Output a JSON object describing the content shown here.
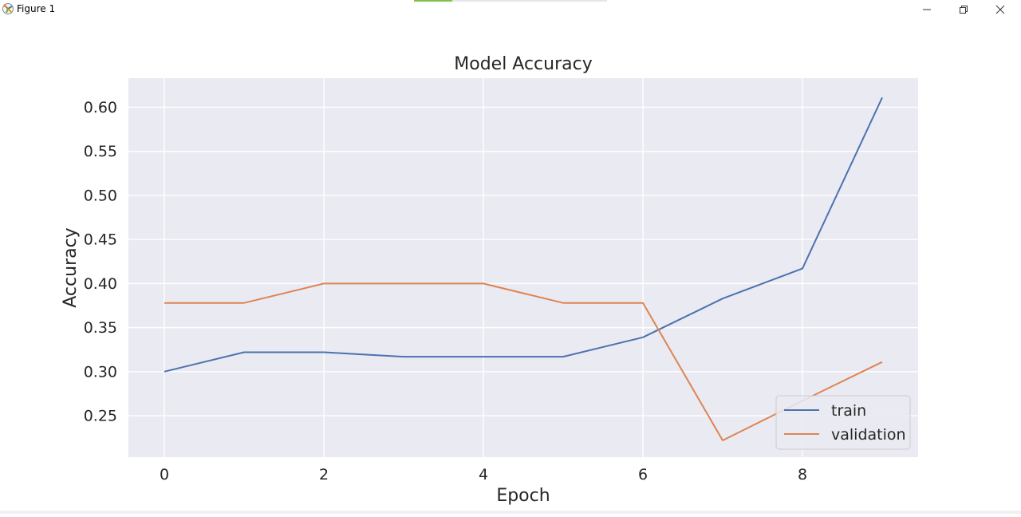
{
  "window": {
    "title": "Figure 1",
    "icons": {
      "app": "matplotlib-figure-icon",
      "minimize": "minimize-icon",
      "maximize": "restore-icon",
      "close": "close-icon"
    }
  },
  "progress": {
    "fraction": 0.2
  },
  "colors": {
    "background": "#eaeaf2",
    "grid": "#ffffff",
    "train": "#4c72b0",
    "validation": "#dd8452"
  },
  "chart_data": {
    "type": "line",
    "title": "Model Accuracy",
    "xlabel": "Epoch",
    "ylabel": "Accuracy",
    "x": [
      0,
      1,
      2,
      3,
      4,
      5,
      6,
      7,
      8,
      9
    ],
    "xlim": [
      -0.45,
      9.45
    ],
    "ylim": [
      0.203,
      0.633
    ],
    "xticks": [
      0,
      2,
      4,
      6,
      8
    ],
    "xtick_labels": [
      "0",
      "2",
      "4",
      "6",
      "8"
    ],
    "yticks": [
      0.25,
      0.3,
      0.35,
      0.4,
      0.45,
      0.5,
      0.55,
      0.6
    ],
    "ytick_labels": [
      "0.25",
      "0.30",
      "0.35",
      "0.40",
      "0.45",
      "0.50",
      "0.55",
      "0.60"
    ],
    "grid": true,
    "legend_position": "lower-right",
    "series": [
      {
        "name": "train",
        "values": [
          0.3,
          0.322,
          0.322,
          0.317,
          0.317,
          0.317,
          0.339,
          0.383,
          0.417,
          0.611
        ]
      },
      {
        "name": "validation",
        "values": [
          0.378,
          0.378,
          0.4,
          0.4,
          0.4,
          0.378,
          0.378,
          0.222,
          0.267,
          0.311
        ]
      }
    ]
  }
}
